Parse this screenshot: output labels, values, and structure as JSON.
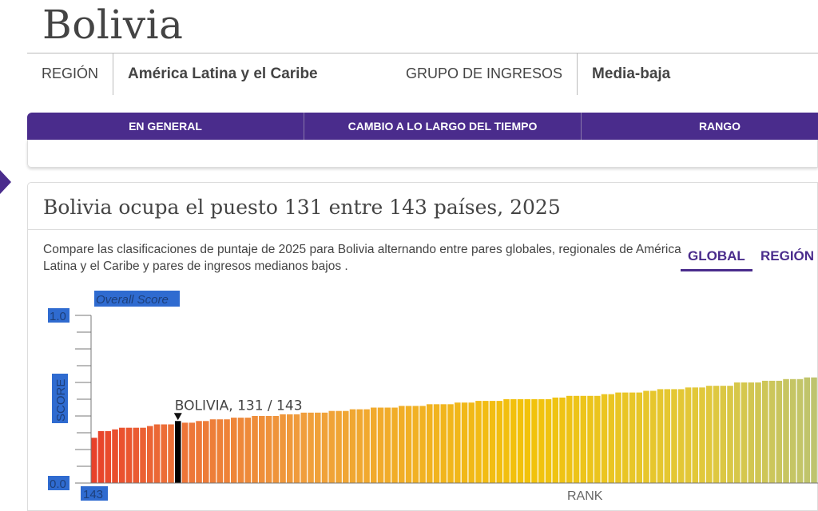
{
  "page": {
    "title": "Bolivia"
  },
  "meta": {
    "region_label": "REGIÓN",
    "region_value": "América Latina y el Caribe",
    "income_label": "GRUPO DE INGRESOS",
    "income_value": "Media-baja"
  },
  "tabs": [
    {
      "label": "EN GENERAL"
    },
    {
      "label": "CAMBIO A LO LARGO DEL TIEMPO"
    },
    {
      "label": "RANGO"
    }
  ],
  "card": {
    "title": "Bolivia ocupa el puesto 131 entre 143 países, 2025",
    "description": "Compare las clasificaciones de puntaje de 2025 para Bolivia alternando entre pares globales, regionales de América Latina y el Caribe y pares de ingresos medianos bajos .",
    "toggles": [
      {
        "label": "GLOBAL",
        "active": true
      },
      {
        "label": "REGIÓN",
        "active": false
      }
    ]
  },
  "colors": {
    "brand": "#4a2c8c",
    "highlight": "#000000",
    "selection": "#2f6bd0"
  },
  "chart_data": {
    "type": "bar",
    "title": "Overall Score",
    "ylabel": "SCORE",
    "xlabel": "RANK",
    "ylim": [
      0,
      1
    ],
    "ytick_labels": [
      "0.0",
      "1.0"
    ],
    "xtick_labels": [
      "143"
    ],
    "annotation": "BOLIVIA, 131 / 143",
    "highlight_rank": 131,
    "first_rank": 143,
    "values": [
      0.27,
      0.31,
      0.31,
      0.32,
      0.33,
      0.33,
      0.33,
      0.33,
      0.34,
      0.35,
      0.35,
      0.35,
      0.37,
      0.36,
      0.36,
      0.37,
      0.37,
      0.38,
      0.38,
      0.38,
      0.39,
      0.39,
      0.39,
      0.4,
      0.4,
      0.4,
      0.4,
      0.41,
      0.41,
      0.41,
      0.42,
      0.42,
      0.42,
      0.42,
      0.43,
      0.43,
      0.43,
      0.44,
      0.44,
      0.44,
      0.45,
      0.45,
      0.45,
      0.45,
      0.46,
      0.46,
      0.46,
      0.46,
      0.47,
      0.47,
      0.47,
      0.47,
      0.48,
      0.48,
      0.48,
      0.49,
      0.49,
      0.49,
      0.49,
      0.5,
      0.5,
      0.5,
      0.5,
      0.5,
      0.5,
      0.5,
      0.51,
      0.51,
      0.52,
      0.52,
      0.52,
      0.52,
      0.52,
      0.53,
      0.53,
      0.54,
      0.54,
      0.54,
      0.54,
      0.55,
      0.55,
      0.56,
      0.56,
      0.56,
      0.56,
      0.57,
      0.57,
      0.57,
      0.58,
      0.58,
      0.58,
      0.58,
      0.6,
      0.6,
      0.6,
      0.6,
      0.61,
      0.61,
      0.61,
      0.62,
      0.62,
      0.62,
      0.63,
      0.63
    ]
  }
}
